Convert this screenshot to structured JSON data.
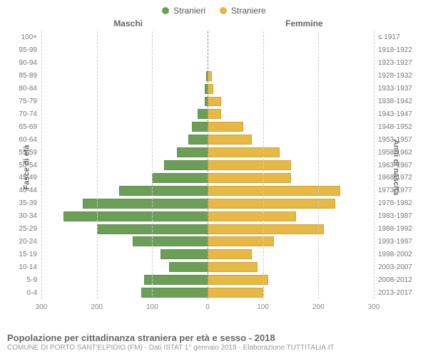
{
  "legend": {
    "male": {
      "label": "Stranieri",
      "color": "#6b9f58"
    },
    "female": {
      "label": "Straniere",
      "color": "#e7b843"
    }
  },
  "chart": {
    "type": "population-pyramid",
    "col_titles": {
      "male": "Maschi",
      "female": "Femmine"
    },
    "y_left_title": "Fasce di età",
    "y_right_title": "Anni di nascita",
    "x_ticks_each_side": [
      0,
      100,
      200,
      300
    ],
    "x_max": 300,
    "grid_color": "#cccccc",
    "center_line_color": "#888888",
    "background_color": "#ffffff",
    "age_labels": [
      "100+",
      "95-99",
      "90-94",
      "85-89",
      "80-84",
      "75-79",
      "70-74",
      "65-69",
      "60-64",
      "55-59",
      "50-54",
      "45-49",
      "40-44",
      "35-39",
      "30-34",
      "25-29",
      "20-24",
      "15-19",
      "10-14",
      "5-9",
      "0-4"
    ],
    "birth_labels": [
      "≤ 1917",
      "1918-1922",
      "1923-1927",
      "1928-1932",
      "1933-1937",
      "1938-1942",
      "1943-1947",
      "1948-1952",
      "1953-1957",
      "1958-1962",
      "1963-1967",
      "1968-1972",
      "1973-1977",
      "1978-1982",
      "1983-1987",
      "1988-1992",
      "1993-1997",
      "1998-2002",
      "2003-2007",
      "2008-2012",
      "2013-2017"
    ],
    "male_values": [
      0,
      0,
      0,
      2,
      5,
      5,
      18,
      28,
      35,
      55,
      78,
      100,
      160,
      225,
      260,
      200,
      135,
      85,
      70,
      115,
      120
    ],
    "female_values": [
      0,
      0,
      0,
      8,
      10,
      25,
      25,
      65,
      80,
      130,
      150,
      150,
      240,
      230,
      160,
      210,
      120,
      80,
      90,
      110,
      100
    ],
    "male_color": "#6b9f58",
    "female_color": "#e7b843",
    "label_fontsize": 10
  },
  "footer": {
    "title": "Popolazione per cittadinanza straniera per età e sesso - 2018",
    "subtitle": "COMUNE DI PORTO SANT'ELPIDIO (FM) - Dati ISTAT 1° gennaio 2018 - Elaborazione TUTTITALIA.IT"
  }
}
